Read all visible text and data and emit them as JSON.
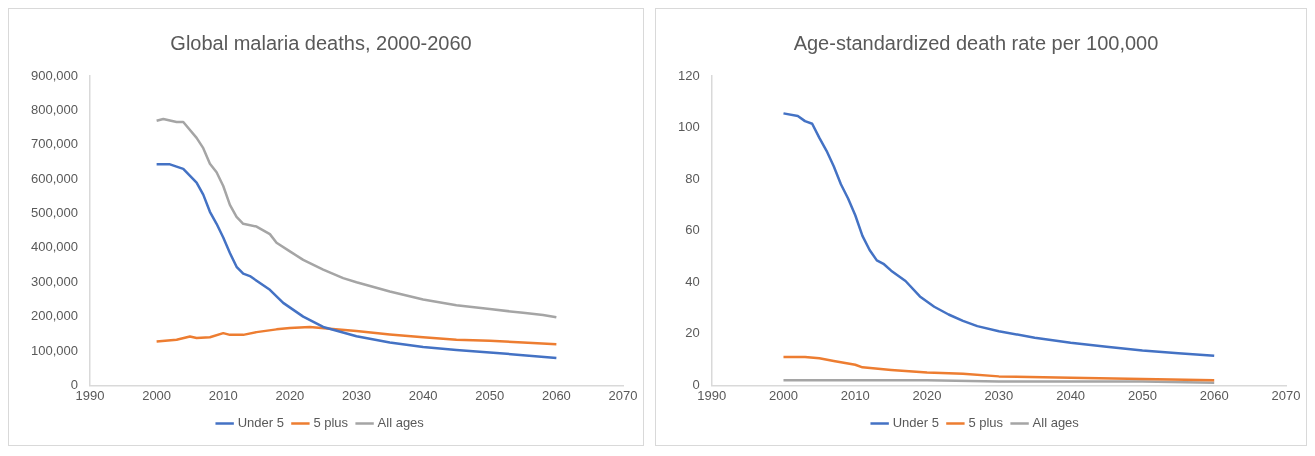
{
  "chart_data": [
    {
      "type": "line",
      "title": "Global malaria deaths, 2000-2060",
      "xlim": [
        1990,
        2070
      ],
      "xticks": [
        1990,
        2000,
        2010,
        2020,
        2030,
        2040,
        2050,
        2060,
        2070
      ],
      "ylim": [
        0,
        900000
      ],
      "yticks": [
        {
          "value": 0,
          "label": "0"
        },
        {
          "value": 100000,
          "label": "100,000"
        },
        {
          "value": 200000,
          "label": "200,000"
        },
        {
          "value": 300000,
          "label": "300,000"
        },
        {
          "value": 400000,
          "label": "400,000"
        },
        {
          "value": 500000,
          "label": "500,000"
        },
        {
          "value": 600000,
          "label": "600,000"
        },
        {
          "value": 700000,
          "label": "700,000"
        },
        {
          "value": 800000,
          "label": "800,000"
        },
        {
          "value": 900000,
          "label": "900,000"
        }
      ],
      "grid": false,
      "legend": "bottom",
      "marker": "none",
      "series": [
        {
          "name": "Under 5",
          "color": "#4472c4",
          "x": [
            2000,
            2002,
            2004,
            2006,
            2007,
            2008,
            2009,
            2010,
            2011,
            2012,
            2013,
            2014,
            2017,
            2019,
            2022,
            2025,
            2030,
            2035,
            2040,
            2045,
            2050,
            2055,
            2060
          ],
          "values": [
            643000,
            643000,
            630000,
            590000,
            555000,
            505000,
            470000,
            430000,
            385000,
            345000,
            325000,
            318000,
            278000,
            240000,
            200000,
            170000,
            143000,
            125000,
            112000,
            103000,
            96000,
            88000,
            80000
          ]
        },
        {
          "name": "5 plus",
          "color": "#ed7d31",
          "x": [
            2000,
            2003,
            2005,
            2006,
            2008,
            2010,
            2011,
            2013,
            2015,
            2018,
            2020,
            2023,
            2026,
            2030,
            2035,
            2040,
            2045,
            2050,
            2055,
            2060
          ],
          "values": [
            128000,
            133000,
            142000,
            138000,
            140000,
            152000,
            147000,
            147000,
            155000,
            163000,
            167000,
            170000,
            165000,
            158000,
            148000,
            140000,
            133000,
            130000,
            125000,
            120000
          ]
        },
        {
          "name": "All ages",
          "color": "#a5a5a5",
          "x": [
            2000,
            2001,
            2003,
            2004,
            2006,
            2007,
            2008,
            2009,
            2010,
            2011,
            2012,
            2013,
            2015,
            2017,
            2018,
            2020,
            2022,
            2025,
            2028,
            2030,
            2035,
            2040,
            2045,
            2050,
            2055,
            2058,
            2060
          ],
          "values": [
            770000,
            775000,
            766000,
            766000,
            720000,
            690000,
            645000,
            620000,
            580000,
            525000,
            490000,
            470000,
            462000,
            440000,
            415000,
            390000,
            365000,
            337000,
            312000,
            300000,
            273000,
            250000,
            233000,
            222000,
            211000,
            205000,
            198000
          ]
        }
      ]
    },
    {
      "type": "line",
      "title": "Age-standardized death rate per 100,000",
      "xlim": [
        1990,
        2070
      ],
      "xticks": [
        1990,
        2000,
        2010,
        2020,
        2030,
        2040,
        2050,
        2060,
        2070
      ],
      "ylim": [
        0,
        120
      ],
      "yticks": [
        0,
        20,
        40,
        60,
        80,
        100,
        120
      ],
      "grid": false,
      "legend": "bottom",
      "marker": "none",
      "series": [
        {
          "name": "Under 5",
          "color": "#4472c4",
          "x": [
            2000,
            2002,
            2003,
            2004,
            2005,
            2006,
            2007,
            2008,
            2009,
            2010,
            2011,
            2012,
            2013,
            2014,
            2015,
            2017,
            2019,
            2021,
            2023,
            2025,
            2027,
            2030,
            2035,
            2040,
            2045,
            2050,
            2055,
            2060
          ],
          "values": [
            105.5,
            104.5,
            102.5,
            101.5,
            96,
            91,
            85,
            78,
            72.5,
            66,
            58,
            52.5,
            48.5,
            47,
            44.5,
            40.5,
            34.5,
            30.5,
            27.5,
            25,
            23,
            21,
            18.5,
            16.5,
            15,
            13.5,
            12.5,
            11.5
          ]
        },
        {
          "name": "5 plus",
          "color": "#ed7d31",
          "x": [
            2000,
            2003,
            2005,
            2007,
            2010,
            2011,
            2015,
            2020,
            2025,
            2030,
            2040,
            2050,
            2060
          ],
          "values": [
            11,
            11,
            10.5,
            9.5,
            8,
            7,
            6,
            5,
            4.5,
            3.5,
            3,
            2.5,
            2
          ]
        },
        {
          "name": "All ages",
          "color": "#a5a5a5",
          "x": [
            2000,
            2010,
            2020,
            2030,
            2040,
            2050,
            2060
          ],
          "values": [
            2,
            2,
            2,
            1.5,
            1.5,
            1.5,
            1
          ]
        }
      ]
    }
  ]
}
